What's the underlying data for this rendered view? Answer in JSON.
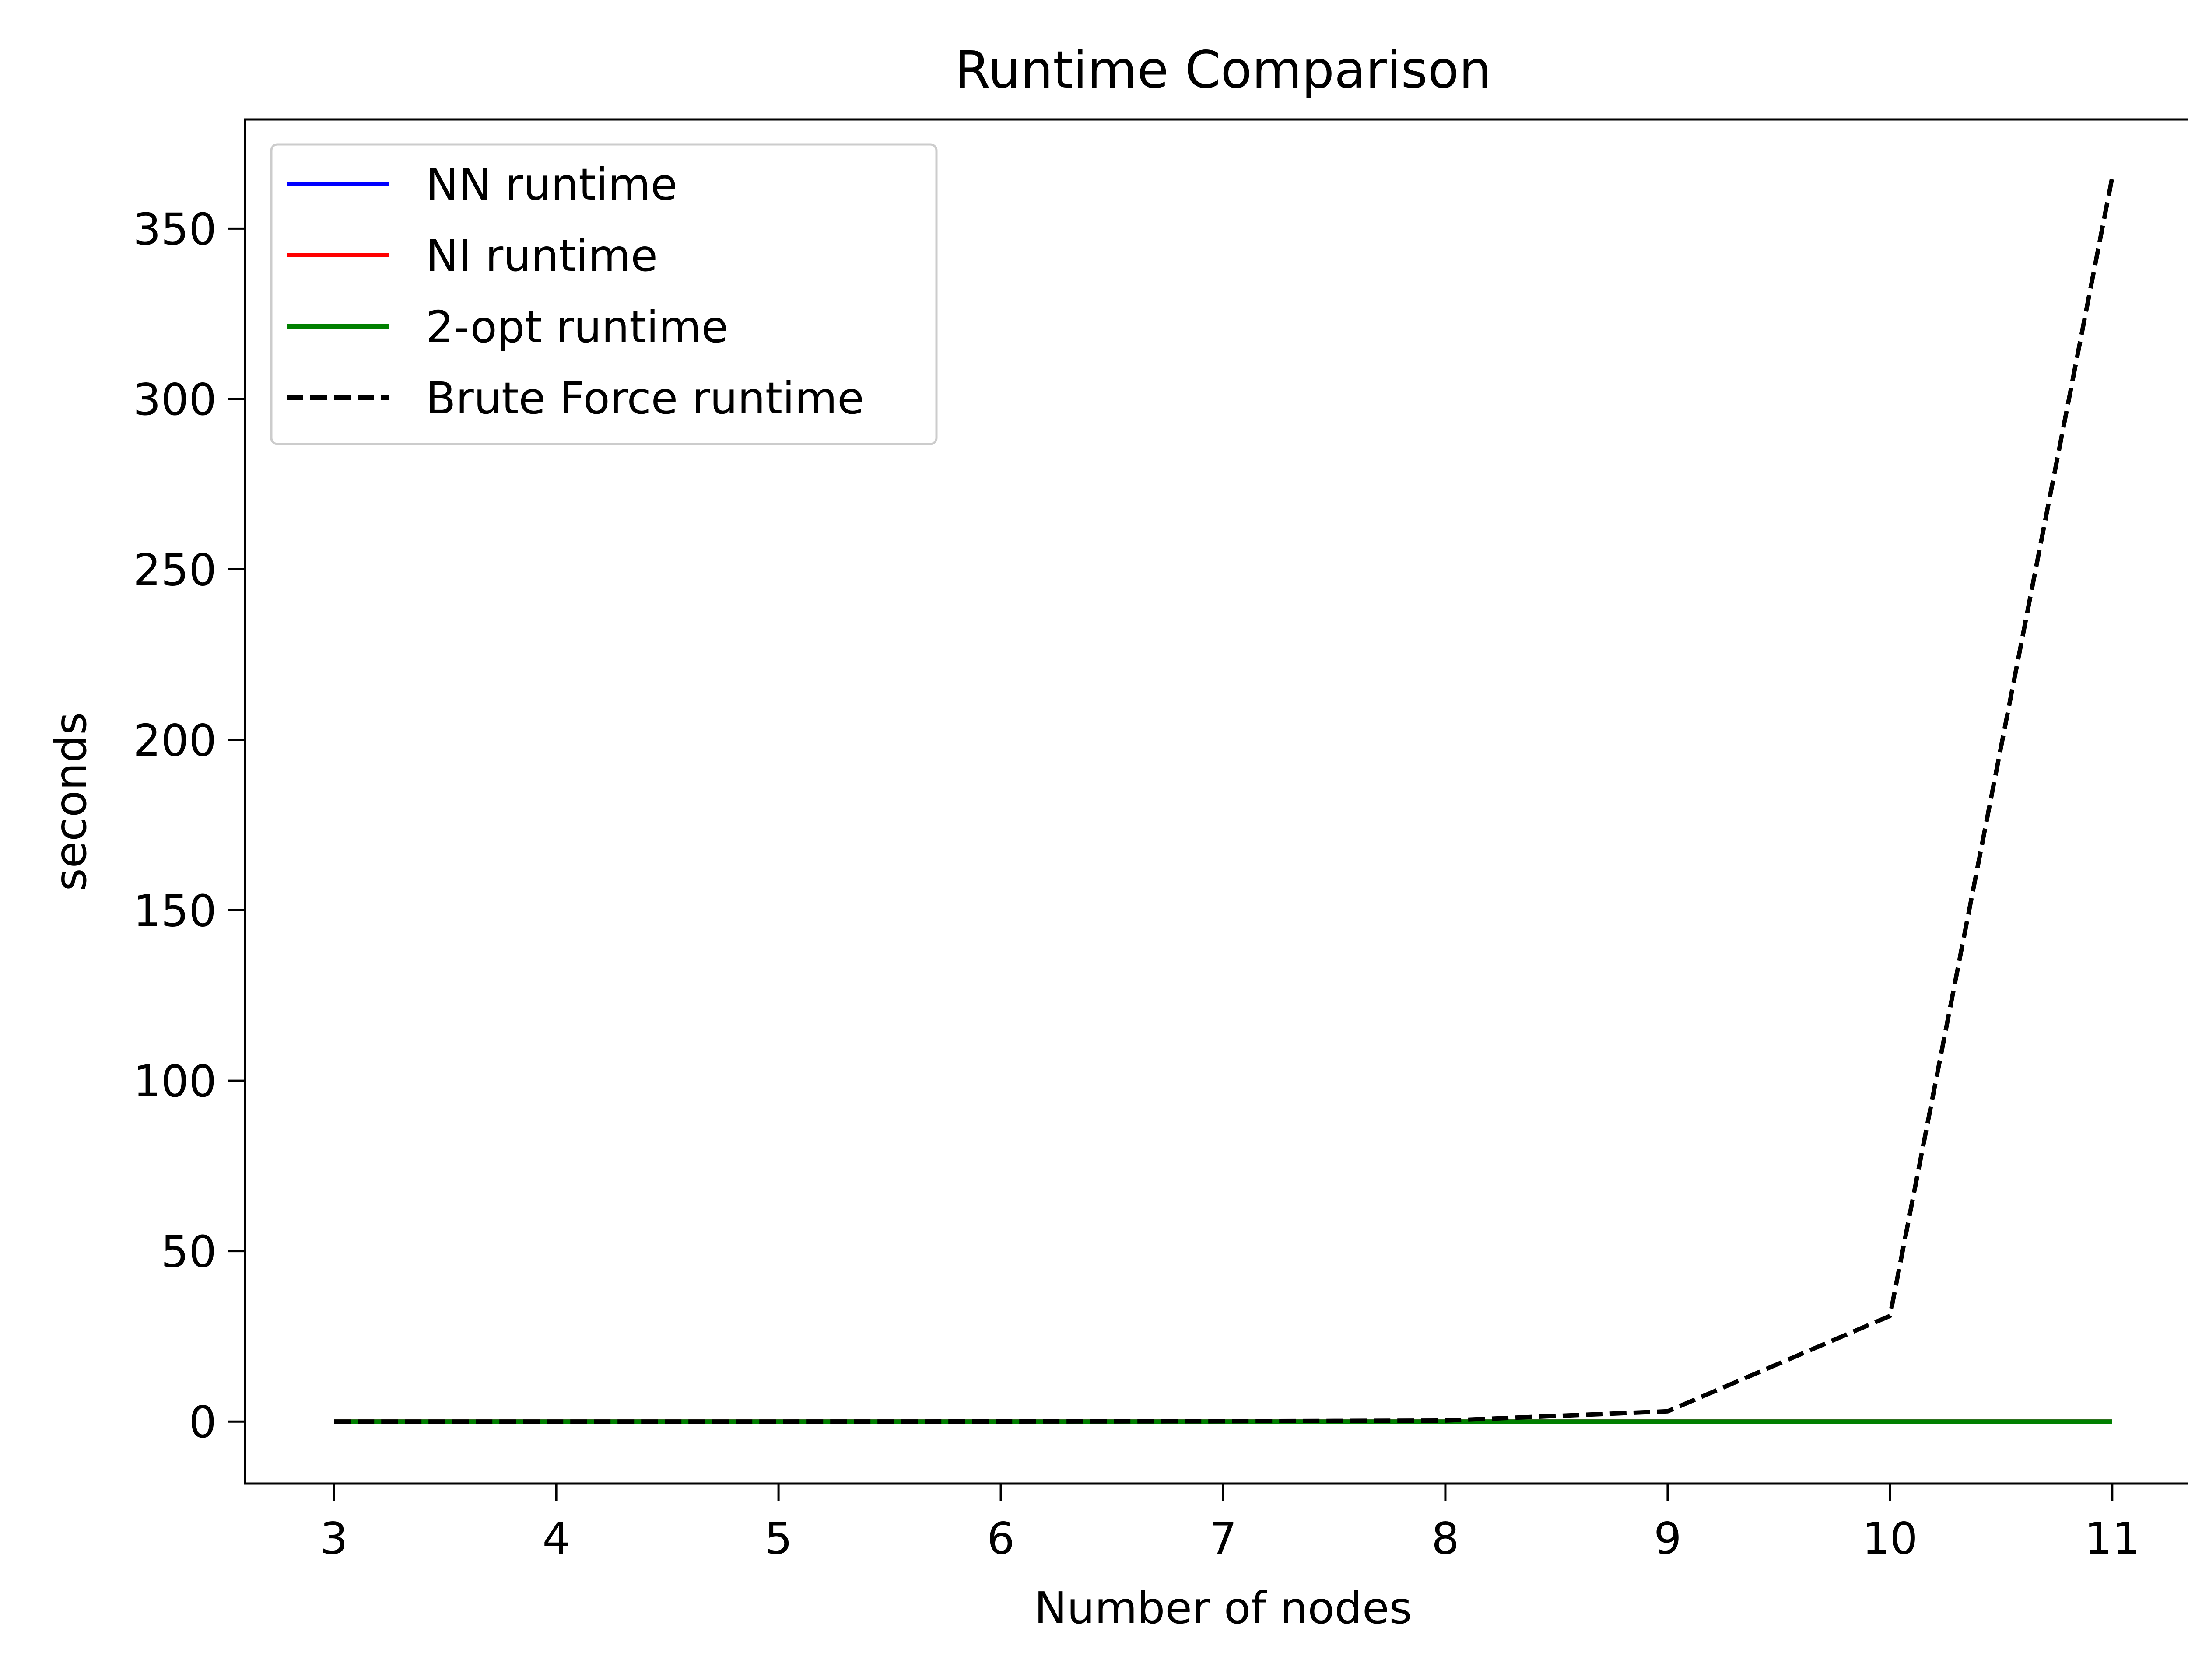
{
  "chart_data": {
    "type": "line",
    "title": "Runtime Comparison",
    "xlabel": "Number of nodes",
    "ylabel": "seconds",
    "x": [
      3,
      4,
      5,
      6,
      7,
      8,
      9,
      10,
      11
    ],
    "xticks": [
      "3",
      "4",
      "5",
      "6",
      "7",
      "8",
      "9",
      "10",
      "11"
    ],
    "yticks": [
      "0",
      "50",
      "100",
      "150",
      "200",
      "250",
      "300",
      "350"
    ],
    "xlim": [
      2.6,
      11.4
    ],
    "ylim": [
      -18.2,
      382.0
    ],
    "grid": false,
    "legend_position": "top-left",
    "series": [
      {
        "name": "NN runtime",
        "color": "#0000ff",
        "dash": "solid",
        "values": [
          0,
          0,
          0,
          0,
          0,
          0,
          0,
          0,
          0
        ]
      },
      {
        "name": "NI runtime",
        "color": "#ff0000",
        "dash": "solid",
        "values": [
          0,
          0,
          0,
          0,
          0,
          0,
          0,
          0,
          0
        ]
      },
      {
        "name": "2-opt runtime",
        "color": "#008000",
        "dash": "solid",
        "values": [
          0,
          0,
          0,
          0,
          0,
          0,
          0,
          0,
          0
        ]
      },
      {
        "name": "Brute Force runtime",
        "color": "#000000",
        "dash": "dashed",
        "values": [
          0,
          0,
          0,
          0.02,
          0.1,
          0.3,
          3,
          31,
          365
        ]
      }
    ]
  }
}
